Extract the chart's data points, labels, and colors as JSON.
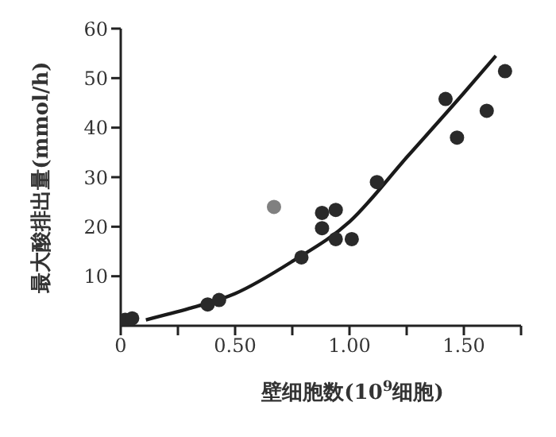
{
  "chart_data": {
    "type": "scatter",
    "xlabel": "壁细胞数(10$^{9}$细胞)",
    "ylabel": "最大酸排出量(mmol/h)",
    "xlim": [
      0,
      1.75
    ],
    "ylim": [
      0,
      60
    ],
    "xticks": [
      {
        "value": 0,
        "label": "0"
      },
      {
        "value": 0.25,
        "label": null
      },
      {
        "value": 0.5,
        "label": "0.50"
      },
      {
        "value": 0.75,
        "label": null
      },
      {
        "value": 1,
        "label": "1.00"
      },
      {
        "value": 1.25,
        "label": null
      },
      {
        "value": 1.5,
        "label": "1.50"
      },
      {
        "value": 1.75,
        "label": null
      }
    ],
    "yticks": [
      10,
      20,
      30,
      40,
      50,
      60
    ],
    "series": [
      {
        "marker": "circle",
        "color": "#2a2a2a",
        "x": [
          0.02,
          0.05,
          0.38,
          0.43,
          0.67,
          0.79,
          0.88,
          0.88,
          0.94,
          0.94,
          1.01,
          1.12,
          1.42,
          1.47,
          1.6,
          1.68
        ],
        "values": [
          1.2,
          1.5,
          4.3,
          5.2,
          24,
          13.8,
          19.7,
          22.8,
          23.4,
          17.5,
          17.5,
          29,
          45.8,
          38,
          43.4,
          51.4
        ],
        "colors": [
          "#2a2a2a",
          "#2a2a2a",
          "#2a2a2a",
          "#2a2a2a",
          "#808080",
          "#2a2a2a",
          "#2a2a2a",
          "#2a2a2a",
          "#2a2a2a",
          "#2a2a2a",
          "#2a2a2a",
          "#2a2a2a",
          "#2a2a2a",
          "#2a2a2a",
          "#2a2a2a",
          "#2a2a2a"
        ]
      },
      {
        "type": "line",
        "marker": "none",
        "color": "#1a1a1a",
        "x": [
          0.11,
          0.3,
          0.5,
          0.75,
          1.0,
          1.25,
          1.5,
          1.64
        ],
        "values": [
          1.2,
          3.5,
          6.5,
          13,
          21,
          34,
          47,
          54.5
        ]
      }
    ]
  }
}
